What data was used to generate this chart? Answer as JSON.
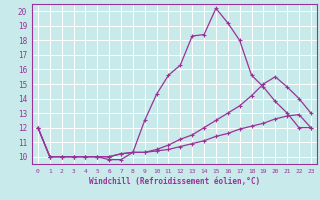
{
  "xlabel": "Windchill (Refroidissement éolien,°C)",
  "bg_color": "#c8eaea",
  "grid_color": "#ffffff",
  "line_color": "#993399",
  "xlim": [
    -0.5,
    23.5
  ],
  "ylim": [
    9.5,
    20.5
  ],
  "xticks": [
    0,
    1,
    2,
    3,
    4,
    5,
    6,
    7,
    8,
    9,
    10,
    11,
    12,
    13,
    14,
    15,
    16,
    17,
    18,
    19,
    20,
    21,
    22,
    23
  ],
  "yticks": [
    10,
    11,
    12,
    13,
    14,
    15,
    16,
    17,
    18,
    19,
    20
  ],
  "line1_x": [
    0,
    1,
    2,
    3,
    4,
    5,
    6,
    7,
    8,
    9,
    10,
    11,
    12,
    13,
    14,
    15,
    16,
    17,
    18,
    19,
    20,
    21,
    22,
    23
  ],
  "line1_y": [
    12,
    10,
    10,
    10,
    10,
    10,
    9.8,
    9.8,
    10.3,
    12.5,
    14.3,
    15.6,
    16.3,
    18.3,
    18.4,
    20.2,
    19.2,
    18.0,
    15.6,
    14.8,
    13.8,
    13.0,
    12.0,
    12.0
  ],
  "line2_x": [
    0,
    1,
    2,
    3,
    4,
    5,
    6,
    7,
    8,
    9,
    10,
    11,
    12,
    13,
    14,
    15,
    16,
    17,
    18,
    19,
    20,
    21,
    22,
    23
  ],
  "line2_y": [
    12,
    10,
    10,
    10,
    10,
    10,
    10,
    10.2,
    10.3,
    10.3,
    10.4,
    10.5,
    10.7,
    10.9,
    11.1,
    11.4,
    11.6,
    11.9,
    12.1,
    12.3,
    12.6,
    12.8,
    12.9,
    12.0
  ],
  "line3_x": [
    0,
    1,
    2,
    3,
    4,
    5,
    6,
    7,
    8,
    9,
    10,
    11,
    12,
    13,
    14,
    15,
    16,
    17,
    18,
    19,
    20,
    21,
    22,
    23
  ],
  "line3_y": [
    12,
    10,
    10,
    10,
    10,
    10,
    10,
    10.2,
    10.3,
    10.3,
    10.5,
    10.8,
    11.2,
    11.5,
    12.0,
    12.5,
    13.0,
    13.5,
    14.2,
    15.0,
    15.5,
    14.8,
    14.0,
    13.0
  ]
}
